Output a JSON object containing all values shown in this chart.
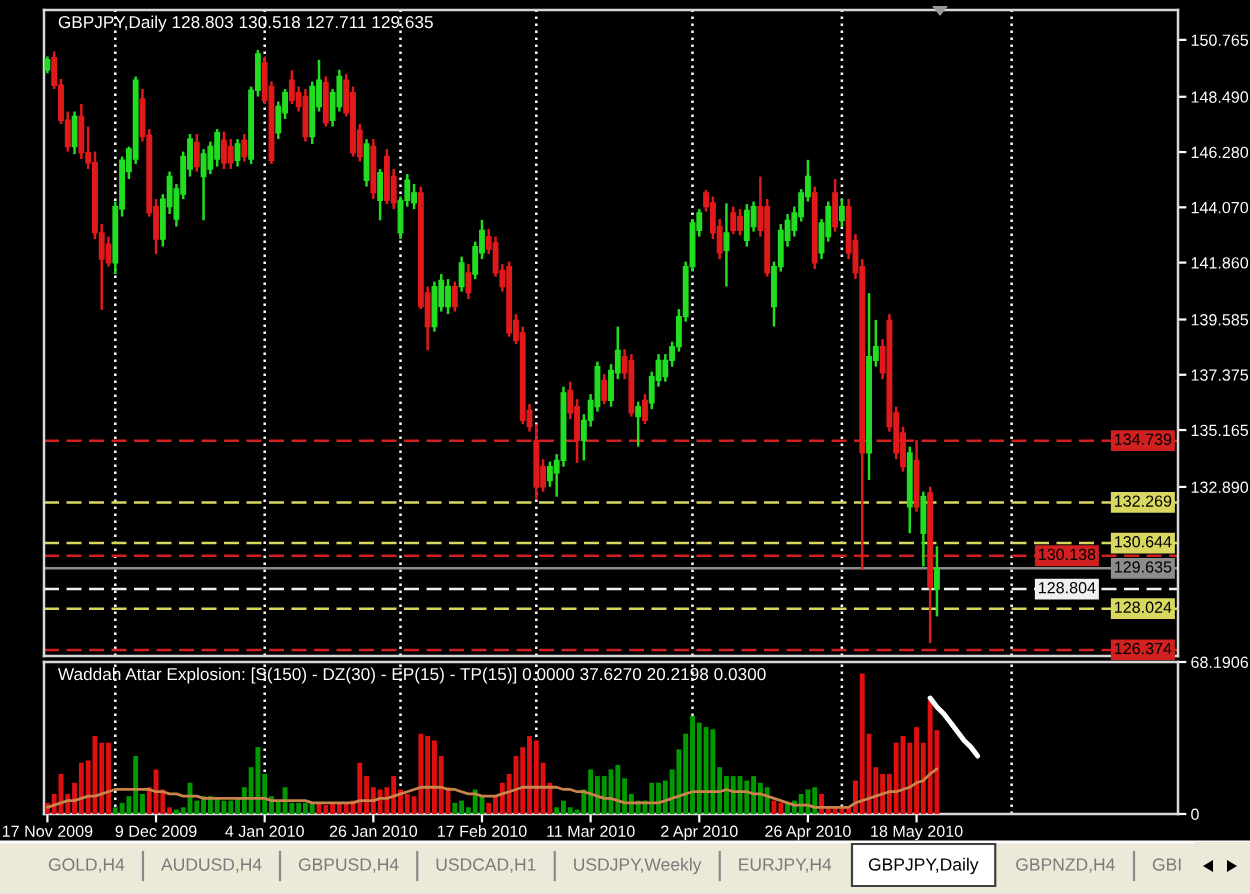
{
  "chart_data": [
    {
      "type": "candlestick",
      "title": "GBPJPY,Daily 128.803 130.518 127.711 129.635",
      "categories": [
        null,
        null,
        null,
        null,
        null,
        null,
        null,
        null,
        null,
        null,
        null,
        null,
        null,
        null,
        null,
        null,
        null,
        null,
        null,
        null,
        null,
        null,
        null,
        null,
        null,
        null,
        null,
        null,
        null,
        null,
        null,
        null,
        null,
        null,
        null,
        null,
        null,
        null,
        null,
        null,
        null,
        null,
        null,
        null,
        null,
        null,
        null,
        null,
        null,
        null,
        null,
        null,
        null,
        null,
        null,
        null,
        null,
        null,
        null,
        null,
        null,
        null,
        null,
        null,
        null,
        null,
        null,
        null,
        null,
        null,
        null,
        null,
        null,
        null,
        null,
        null,
        null,
        null,
        null,
        null,
        null,
        null,
        null,
        null,
        null,
        null,
        null,
        null,
        null,
        null,
        null,
        null,
        null,
        null,
        null,
        null,
        null,
        null,
        null,
        null,
        null,
        null,
        null,
        null,
        null,
        null,
        null,
        null,
        null,
        null,
        null,
        null,
        null,
        null,
        null,
        null,
        null,
        null,
        null,
        null,
        null,
        null,
        null,
        null,
        null,
        null,
        null,
        null,
        null,
        null,
        null,
        null,
        null,
        null,
        null,
        null,
        null,
        null,
        null,
        null,
        null,
        null,
        null,
        null,
        null,
        null,
        null,
        null,
        null,
        null,
        null,
        null,
        null,
        null,
        null,
        null,
        null,
        null,
        null,
        null,
        null,
        null,
        null,
        null,
        null,
        null,
        null
      ],
      "ohlc": [
        [
          149.57,
          150.1,
          149.43,
          149.97
        ],
        [
          150.05,
          150.3,
          148.8,
          148.95
        ],
        [
          148.95,
          149.2,
          147.4,
          147.55
        ],
        [
          147.55,
          147.9,
          146.3,
          146.5
        ],
        [
          146.5,
          147.9,
          146.2,
          147.7
        ],
        [
          147.7,
          148.2,
          146.0,
          146.25
        ],
        [
          146.25,
          147.3,
          145.6,
          145.85
        ],
        [
          145.85,
          146.3,
          142.8,
          143.05
        ],
        [
          143.05,
          143.4,
          139.97,
          142.0
        ],
        [
          142.6,
          142.9,
          141.7,
          141.85
        ],
        [
          141.85,
          144.3,
          141.4,
          144.1
        ],
        [
          144.0,
          146.1,
          143.7,
          145.95
        ],
        [
          145.5,
          146.5,
          145.2,
          146.4
        ],
        [
          146.0,
          149.3,
          145.8,
          149.15
        ],
        [
          148.4,
          148.8,
          146.7,
          146.9
        ],
        [
          146.95,
          147.2,
          143.7,
          143.85
        ],
        [
          144.1,
          144.4,
          142.2,
          142.8
        ],
        [
          142.8,
          144.6,
          142.5,
          144.4
        ],
        [
          144.1,
          145.5,
          143.8,
          145.3
        ],
        [
          143.6,
          145.0,
          143.3,
          144.8
        ],
        [
          144.6,
          146.3,
          144.4,
          146.1
        ],
        [
          145.6,
          147.0,
          145.3,
          146.8
        ],
        [
          146.65,
          147.0,
          145.5,
          145.7
        ],
        [
          145.3,
          146.4,
          143.55,
          146.2
        ],
        [
          145.6,
          146.7,
          145.4,
          146.5
        ],
        [
          146.0,
          147.2,
          145.7,
          147.05
        ],
        [
          146.75,
          147.1,
          145.6,
          145.85
        ],
        [
          146.5,
          146.8,
          145.6,
          145.85
        ],
        [
          145.95,
          146.8,
          145.7,
          146.6
        ],
        [
          146.75,
          147.0,
          145.9,
          146.1
        ],
        [
          146.0,
          148.9,
          145.8,
          148.75
        ],
        [
          148.75,
          150.36,
          148.5,
          150.2
        ],
        [
          149.85,
          150.1,
          148.2,
          148.35
        ],
        [
          148.9,
          149.1,
          145.8,
          145.95
        ],
        [
          147.05,
          148.3,
          146.8,
          148.1
        ],
        [
          147.85,
          148.8,
          147.6,
          148.65
        ],
        [
          149.15,
          149.55,
          148.2,
          148.35
        ],
        [
          148.65,
          148.9,
          147.9,
          148.1
        ],
        [
          148.5,
          148.8,
          146.7,
          146.9
        ],
        [
          146.9,
          149.1,
          146.6,
          148.9
        ],
        [
          148.1,
          149.97,
          147.9,
          149.15
        ],
        [
          149.05,
          149.3,
          147.3,
          147.45
        ],
        [
          147.55,
          148.8,
          147.3,
          148.65
        ],
        [
          148.1,
          149.57,
          147.9,
          149.3
        ],
        [
          149.15,
          149.4,
          147.7,
          147.85
        ],
        [
          148.65,
          148.9,
          146.1,
          146.25
        ],
        [
          147.15,
          147.4,
          145.9,
          146.1
        ],
        [
          145.15,
          146.8,
          144.9,
          146.6
        ],
        [
          146.5,
          146.8,
          144.4,
          144.65
        ],
        [
          144.35,
          145.6,
          143.55,
          145.45
        ],
        [
          146.1,
          146.4,
          144.2,
          144.35
        ],
        [
          145.3,
          145.6,
          144.0,
          144.25
        ],
        [
          143.05,
          144.5,
          142.8,
          144.35
        ],
        [
          144.35,
          145.4,
          144.1,
          145.15
        ],
        [
          144.25,
          145.0,
          144.0,
          144.65
        ],
        [
          144.65,
          144.9,
          140.0,
          140.1
        ],
        [
          140.65,
          140.9,
          138.35,
          139.3
        ],
        [
          139.3,
          141.1,
          139.1,
          140.9
        ],
        [
          140.1,
          141.4,
          139.9,
          141.15
        ],
        [
          140.1,
          141.2,
          139.8,
          140.9
        ],
        [
          140.9,
          141.1,
          139.9,
          140.1
        ],
        [
          140.9,
          142.1,
          140.7,
          141.85
        ],
        [
          141.45,
          141.8,
          140.4,
          140.65
        ],
        [
          141.4,
          142.7,
          141.2,
          142.5
        ],
        [
          142.25,
          143.57,
          142.0,
          143.15
        ],
        [
          142.9,
          143.2,
          142.2,
          142.4
        ],
        [
          142.65,
          142.9,
          141.3,
          141.45
        ],
        [
          141.55,
          141.8,
          140.7,
          140.9
        ],
        [
          141.7,
          141.9,
          138.9,
          139.05
        ],
        [
          139.55,
          139.8,
          138.6,
          138.75
        ],
        [
          139.05,
          139.3,
          135.4,
          135.55
        ],
        [
          135.95,
          136.2,
          135.1,
          135.3
        ],
        [
          134.75,
          135.4,
          132.37,
          132.9
        ],
        [
          133.7,
          134.0,
          132.7,
          132.9
        ],
        [
          133.15,
          133.9,
          132.9,
          133.7
        ],
        [
          133.45,
          134.2,
          132.5,
          133.95
        ],
        [
          133.95,
          136.9,
          133.7,
          136.65
        ],
        [
          136.75,
          137.1,
          135.6,
          135.85
        ],
        [
          136.1,
          136.4,
          133.85,
          134.75
        ],
        [
          134.75,
          135.8,
          133.95,
          135.55
        ],
        [
          135.55,
          136.6,
          135.3,
          136.35
        ],
        [
          136.1,
          137.9,
          135.9,
          137.7
        ],
        [
          137.15,
          137.4,
          136.2,
          136.35
        ],
        [
          136.35,
          137.8,
          136.1,
          137.55
        ],
        [
          137.45,
          139.3,
          137.2,
          138.35
        ],
        [
          138.1,
          138.4,
          137.2,
          137.45
        ],
        [
          137.95,
          138.2,
          135.7,
          135.85
        ],
        [
          135.7,
          136.3,
          134.5,
          136.1
        ],
        [
          136.35,
          136.6,
          135.4,
          135.55
        ],
        [
          136.25,
          137.5,
          136.0,
          137.3
        ],
        [
          137.15,
          138.2,
          136.9,
          137.95
        ],
        [
          137.3,
          138.2,
          137.1,
          137.95
        ],
        [
          137.95,
          138.7,
          137.7,
          138.5
        ],
        [
          138.5,
          140.0,
          138.3,
          139.7
        ],
        [
          139.7,
          141.9,
          139.5,
          141.7
        ],
        [
          141.7,
          143.6,
          141.5,
          143.45
        ],
        [
          143.15,
          144.0,
          142.9,
          143.85
        ],
        [
          144.65,
          144.77,
          143.9,
          144.1
        ],
        [
          144.25,
          144.5,
          142.8,
          143.05
        ],
        [
          143.3,
          143.6,
          142.0,
          142.25
        ],
        [
          142.35,
          144.23,
          140.9,
          143.05
        ],
        [
          143.85,
          144.1,
          143.0,
          143.15
        ],
        [
          143.7,
          144.0,
          142.95,
          143.15
        ],
        [
          142.75,
          144.2,
          142.5,
          143.95
        ],
        [
          143.3,
          144.3,
          143.1,
          144.1
        ],
        [
          144.1,
          145.3,
          142.9,
          143.15
        ],
        [
          144.1,
          144.4,
          141.3,
          141.45
        ],
        [
          140.1,
          141.9,
          139.3,
          141.7
        ],
        [
          141.7,
          143.4,
          141.5,
          143.15
        ],
        [
          142.75,
          143.8,
          142.5,
          143.55
        ],
        [
          143.15,
          144.1,
          142.9,
          143.85
        ],
        [
          143.7,
          144.8,
          143.5,
          144.65
        ],
        [
          144.5,
          145.97,
          144.3,
          145.3
        ],
        [
          144.65,
          144.9,
          141.6,
          141.85
        ],
        [
          142.25,
          143.6,
          142.0,
          143.45
        ],
        [
          142.9,
          144.3,
          142.7,
          144.1
        ],
        [
          144.65,
          145.2,
          143.1,
          143.3
        ],
        [
          143.55,
          144.4,
          143.3,
          144.1
        ],
        [
          144.1,
          144.4,
          142.0,
          142.25
        ],
        [
          142.75,
          143.0,
          141.2,
          141.45
        ],
        [
          141.7,
          142.0,
          129.57,
          134.25
        ],
        [
          134.25,
          140.64,
          133.17,
          138.1
        ],
        [
          137.95,
          139.57,
          137.7,
          138.5
        ],
        [
          138.5,
          138.8,
          137.2,
          137.45
        ],
        [
          139.55,
          139.8,
          135.1,
          135.3
        ],
        [
          135.85,
          136.1,
          134.0,
          134.25
        ],
        [
          135.05,
          135.3,
          133.5,
          133.7
        ],
        [
          132.1,
          134.5,
          131.04,
          134.25
        ],
        [
          133.95,
          134.77,
          131.9,
          132.1
        ],
        [
          131.04,
          132.7,
          129.71,
          132.5
        ],
        [
          132.65,
          132.9,
          126.64,
          128.9
        ],
        [
          128.803,
          130.518,
          127.711,
          129.635
        ],
        null,
        null,
        null,
        null,
        null,
        null,
        null,
        null,
        null,
        null,
        null,
        null,
        null,
        null,
        null,
        null,
        null,
        null,
        null,
        null,
        null,
        null,
        null,
        null,
        null,
        null,
        null,
        null,
        null,
        null,
        null,
        null,
        null,
        null,
        null
      ],
      "colors": [
        "#22dd22",
        "#e01a1a",
        "#e01a1a",
        "#e01a1a",
        "#22dd22",
        "#e01a1a",
        "#e01a1a",
        "#e01a1a",
        "#e01a1a",
        "#e01a1a",
        "#22dd22",
        "#22dd22",
        "#22dd22",
        "#22dd22",
        "#e01a1a",
        "#e01a1a",
        "#e01a1a",
        "#22dd22",
        "#22dd22",
        "#22dd22",
        "#22dd22",
        "#22dd22",
        "#e01a1a",
        "#22dd22",
        "#22dd22",
        "#22dd22",
        "#e01a1a",
        "#e01a1a",
        "#22dd22",
        "#e01a1a",
        "#22dd22",
        "#22dd22",
        "#e01a1a",
        "#e01a1a",
        "#22dd22",
        "#22dd22",
        "#e01a1a",
        "#e01a1a",
        "#e01a1a",
        "#22dd22",
        "#22dd22",
        "#e01a1a",
        "#22dd22",
        "#22dd22",
        "#e01a1a",
        "#e01a1a",
        "#e01a1a",
        "#22dd22",
        "#e01a1a",
        "#22dd22",
        "#e01a1a",
        "#e01a1a",
        "#22dd22",
        "#22dd22",
        "#22dd22",
        "#e01a1a",
        "#e01a1a",
        "#22dd22",
        "#22dd22",
        "#22dd22",
        "#e01a1a",
        "#22dd22",
        "#e01a1a",
        "#22dd22",
        "#22dd22",
        "#e01a1a",
        "#e01a1a",
        "#e01a1a",
        "#e01a1a",
        "#e01a1a",
        "#e01a1a",
        "#e01a1a",
        "#e01a1a",
        "#e01a1a",
        "#22dd22",
        "#22dd22",
        "#22dd22",
        "#e01a1a",
        "#e01a1a",
        "#22dd22",
        "#22dd22",
        "#22dd22",
        "#e01a1a",
        "#22dd22",
        "#22dd22",
        "#e01a1a",
        "#e01a1a",
        "#22dd22",
        "#e01a1a",
        "#22dd22",
        "#22dd22",
        "#22dd22",
        "#22dd22",
        "#22dd22",
        "#22dd22",
        "#22dd22",
        "#22dd22",
        "#e01a1a",
        "#e01a1a",
        "#e01a1a",
        "#22dd22",
        "#e01a1a",
        "#e01a1a",
        "#22dd22",
        "#22dd22",
        "#e01a1a",
        "#e01a1a",
        "#22dd22",
        "#22dd22",
        "#22dd22",
        "#22dd22",
        "#22dd22",
        "#22dd22",
        "#e01a1a",
        "#22dd22",
        "#22dd22",
        "#e01a1a",
        "#22dd22",
        "#e01a1a",
        "#e01a1a",
        "#e01a1a",
        "#22dd22",
        "#22dd22",
        "#e01a1a",
        "#e01a1a",
        "#e01a1a",
        "#e01a1a",
        "#22dd22",
        "#e01a1a",
        "#22dd22",
        "#e01a1a",
        "#22dd22",
        null,
        null,
        null,
        null,
        null,
        null,
        null,
        null,
        null,
        null,
        null,
        null,
        null,
        null,
        null,
        null,
        null,
        null,
        null,
        null,
        null,
        null,
        null,
        null,
        null,
        null,
        null,
        null,
        null,
        null,
        null,
        null,
        null,
        null,
        null
      ],
      "ylim": [
        126.13,
        151.96
      ],
      "yticks": [
        {
          "value": 150.765,
          "label": "150.765"
        },
        {
          "value": 148.49,
          "label": "148.490"
        },
        {
          "value": 146.28,
          "label": "146.280"
        },
        {
          "value": 144.07,
          "label": "144.070"
        },
        {
          "value": 141.86,
          "label": "141.860"
        },
        {
          "value": 139.585,
          "label": "139.585"
        },
        {
          "value": 137.375,
          "label": "137.375"
        },
        {
          "value": 135.165,
          "label": "135.165"
        },
        {
          "value": 132.89,
          "label": "132.890"
        }
      ],
      "ref_lines": [
        {
          "axis": "y",
          "value": 134.739,
          "label": "134.739",
          "color": "#d02020",
          "line_style": "dashed"
        },
        {
          "axis": "y",
          "value": 132.269,
          "label": "132.269",
          "color": "#d8d860",
          "line_style": "dashed"
        },
        {
          "axis": "y",
          "value": 130.644,
          "label": "130.644",
          "color": "#d8d860",
          "line_style": "dashed"
        },
        {
          "axis": "y",
          "value": 130.138,
          "label": "130.138",
          "color": "#d02020",
          "line_style": "dashed"
        },
        {
          "axis": "y",
          "value": 129.635,
          "label": "129.635",
          "color": "#8c8c8c",
          "line_style": "solid"
        },
        {
          "axis": "y",
          "value": 128.804,
          "label": "128.804",
          "color": "#f0f0f0",
          "line_style": "dashed"
        },
        {
          "axis": "y",
          "value": 128.024,
          "label": "128.024",
          "color": "#d8d860",
          "line_style": "dashed"
        },
        {
          "axis": "y",
          "value": 126.374,
          "label": "126.374",
          "color": "#d02020",
          "line_style": "dashed"
        }
      ]
    },
    {
      "type": "bar",
      "title": "Waddah Attar Explosion: [S(150) - DZ(30) - EP(15) - TP(15)] 0.0000 37.6270 20.2198 0.0300",
      "categories": [
        "17 Nov 2009",
        null,
        null,
        null,
        null,
        null,
        null,
        null,
        null,
        null,
        null,
        null,
        null,
        null,
        null,
        null,
        "9 Dec 2009",
        null,
        null,
        null,
        null,
        null,
        null,
        null,
        null,
        null,
        null,
        null,
        null,
        null,
        null,
        null,
        "4 Jan 2010",
        null,
        null,
        null,
        null,
        null,
        null,
        null,
        null,
        null,
        null,
        null,
        null,
        null,
        null,
        null,
        "26 Jan 2010",
        null,
        null,
        null,
        null,
        null,
        null,
        null,
        null,
        null,
        null,
        null,
        null,
        null,
        null,
        null,
        "17 Feb 2010",
        null,
        null,
        null,
        null,
        null,
        null,
        null,
        null,
        null,
        null,
        null,
        null,
        null,
        null,
        null,
        "11 Mar 2010",
        null,
        null,
        null,
        null,
        null,
        null,
        null,
        null,
        null,
        null,
        null,
        null,
        null,
        null,
        null,
        "2 Apr 2010",
        null,
        null,
        null,
        null,
        null,
        null,
        null,
        null,
        null,
        null,
        null,
        null,
        null,
        null,
        null,
        "26 Apr 2010",
        null,
        null,
        null,
        null,
        null,
        null,
        null,
        null,
        null,
        null,
        null,
        null,
        null,
        null,
        null,
        "18 May 2010",
        null,
        null,
        null,
        null,
        null,
        null,
        null,
        null,
        null,
        null,
        null,
        null,
        null,
        null,
        null,
        null,
        null,
        null,
        null,
        null,
        null,
        null,
        null,
        null,
        null,
        null,
        null,
        null,
        null,
        null,
        null,
        null,
        null,
        null,
        null,
        null,
        null,
        null
      ],
      "series": [
        {
          "color": "#009a00",
          "values": [
            null,
            null,
            null,
            null,
            null,
            null,
            null,
            null,
            null,
            null,
            3,
            5,
            8,
            26,
            9,
            null,
            null,
            null,
            null,
            2,
            3,
            14,
            6,
            8,
            8,
            7,
            6,
            6,
            7,
            12,
            21,
            30,
            18,
            8,
            6,
            12,
            5,
            5,
            5,
            5,
            null,
            null,
            null,
            null,
            null,
            null,
            null,
            null,
            null,
            null,
            null,
            null,
            null,
            null,
            null,
            null,
            null,
            null,
            null,
            null,
            5,
            6,
            3,
            11,
            8,
            null,
            null,
            null,
            null,
            null,
            null,
            null,
            null,
            null,
            null,
            3,
            6,
            3,
            2,
            11,
            20,
            17,
            17,
            20,
            22,
            16,
            9,
            6,
            6,
            14,
            14,
            15,
            20,
            29,
            36,
            44,
            41,
            39,
            38,
            21,
            17,
            17,
            17,
            15,
            17,
            14,
            12,
            null,
            null,
            5,
            6,
            9,
            11,
            12,
            null,
            null,
            null,
            null,
            null,
            null,
            null,
            null,
            null,
            null,
            null,
            null,
            null,
            null,
            null,
            null,
            null,
            null,
            null,
            null,
            null,
            null,
            null,
            null,
            null,
            null,
            null,
            null,
            null,
            null,
            null,
            null,
            null,
            null,
            null,
            null,
            null,
            null,
            null,
            null,
            null,
            null,
            null,
            null,
            null,
            null,
            null,
            null,
            null,
            null,
            null,
            null,
            null
          ]
        },
        {
          "color": "#e01010",
          "values": [
            5,
            9,
            18,
            9,
            14,
            23,
            24,
            35,
            32,
            32,
            null,
            null,
            null,
            null,
            null,
            12,
            20,
            11,
            3,
            null,
            null,
            null,
            null,
            null,
            null,
            null,
            null,
            null,
            null,
            null,
            null,
            null,
            null,
            null,
            null,
            null,
            null,
            null,
            null,
            null,
            5,
            4,
            5,
            5,
            5,
            6,
            23,
            17,
            12,
            11,
            12,
            17,
            11,
            9,
            8,
            36,
            35,
            33,
            26,
            12,
            null,
            null,
            null,
            null,
            null,
            5,
            8,
            14,
            18,
            26,
            30,
            35,
            33,
            23,
            14,
            null,
            null,
            null,
            null,
            null,
            null,
            null,
            null,
            null,
            null,
            null,
            null,
            null,
            null,
            null,
            null,
            null,
            null,
            null,
            null,
            null,
            null,
            null,
            null,
            null,
            null,
            null,
            null,
            null,
            null,
            null,
            null,
            6,
            5,
            null,
            null,
            null,
            null,
            null,
            9,
            3,
            3,
            3,
            3,
            15,
            63,
            36,
            21,
            18,
            18,
            32,
            35,
            32,
            39,
            32,
            51,
            37.627,
            null,
            null,
            null,
            null,
            null,
            null,
            null,
            null,
            null,
            null,
            null,
            null,
            null,
            null,
            null,
            null,
            null,
            null,
            null,
            null,
            null,
            null,
            null,
            null,
            null,
            null,
            null,
            null,
            null,
            null,
            null,
            null,
            null,
            null,
            null
          ]
        },
        {
          "type": "line",
          "color": "#c8844a",
          "values": [
            3,
            4,
            5,
            6,
            6,
            7,
            8,
            8,
            9,
            10,
            11,
            11,
            11,
            11,
            11,
            11,
            10,
            10,
            9,
            9,
            8,
            8,
            8,
            7,
            7,
            7,
            7,
            7,
            7,
            7,
            7,
            7,
            7,
            6,
            6,
            6,
            6,
            6,
            6,
            5,
            5,
            5,
            5,
            5,
            5,
            5,
            6,
            6,
            6,
            7,
            7,
            8,
            9,
            10,
            11,
            12,
            12,
            12,
            12,
            11,
            11,
            10,
            9,
            9,
            8,
            8,
            8,
            9,
            10,
            11,
            12,
            12,
            12,
            12,
            12,
            12,
            11,
            11,
            10,
            10,
            9,
            8,
            7,
            7,
            6,
            5,
            5,
            5,
            5,
            5,
            5,
            6,
            7,
            8,
            9,
            10,
            10,
            10,
            10,
            10,
            11,
            10,
            10,
            10,
            9,
            9,
            8,
            7,
            6,
            5,
            4,
            4,
            4,
            3,
            3,
            3,
            3,
            3,
            3,
            5,
            6,
            7,
            8,
            9,
            10,
            10,
            11,
            12,
            14,
            15,
            18,
            20.2198,
            null,
            null,
            null,
            null,
            null,
            null,
            null,
            null,
            null,
            null,
            null,
            null,
            null,
            null,
            null,
            null,
            null,
            null,
            null,
            null,
            null,
            null,
            null,
            null,
            null,
            null,
            null,
            null,
            null,
            null,
            null,
            null,
            null,
            null,
            null
          ]
        },
        {
          "type": "line",
          "color": "#ffffff",
          "values": [
            null,
            null,
            null,
            null,
            null,
            null,
            null,
            null,
            null,
            null,
            null,
            null,
            null,
            null,
            null,
            null,
            null,
            null,
            null,
            null,
            null,
            null,
            null,
            null,
            null,
            null,
            null,
            null,
            null,
            null,
            null,
            null,
            null,
            null,
            null,
            null,
            null,
            null,
            null,
            null,
            null,
            null,
            null,
            null,
            null,
            null,
            null,
            null,
            null,
            null,
            null,
            null,
            null,
            null,
            null,
            null,
            null,
            null,
            null,
            null,
            null,
            null,
            null,
            null,
            null,
            null,
            null,
            null,
            null,
            null,
            null,
            null,
            null,
            null,
            null,
            null,
            null,
            null,
            null,
            null,
            null,
            null,
            null,
            null,
            null,
            null,
            null,
            null,
            null,
            null,
            null,
            null,
            null,
            null,
            null,
            null,
            null,
            null,
            null,
            null,
            null,
            null,
            null,
            null,
            null,
            null,
            null,
            null,
            null,
            null,
            null,
            null,
            null,
            null,
            null,
            null,
            null,
            null,
            null,
            null,
            null,
            null,
            null,
            null,
            null,
            null,
            null,
            null,
            null,
            null,
            52,
            48,
            45,
            41,
            37,
            33,
            30,
            26,
            null,
            null,
            null,
            null,
            null,
            null,
            null,
            null,
            null,
            null,
            null,
            null,
            null,
            null,
            null,
            null,
            null,
            null,
            null,
            null,
            null,
            null,
            null,
            null,
            null,
            null,
            null,
            null,
            null
          ]
        }
      ],
      "ylim": [
        0,
        68.1906
      ],
      "yticks": [
        0,
        68.1906
      ],
      "annotations": [
        "GOLD,H4",
        "AUDUSD,H4",
        "GBPUSD,H4",
        "USDCAD,H1",
        "USDJPY,Weekly",
        "EURJPY,H4",
        "GBPJPY,Daily",
        "GBPNZD,H4",
        "GBI"
      ]
    }
  ]
}
